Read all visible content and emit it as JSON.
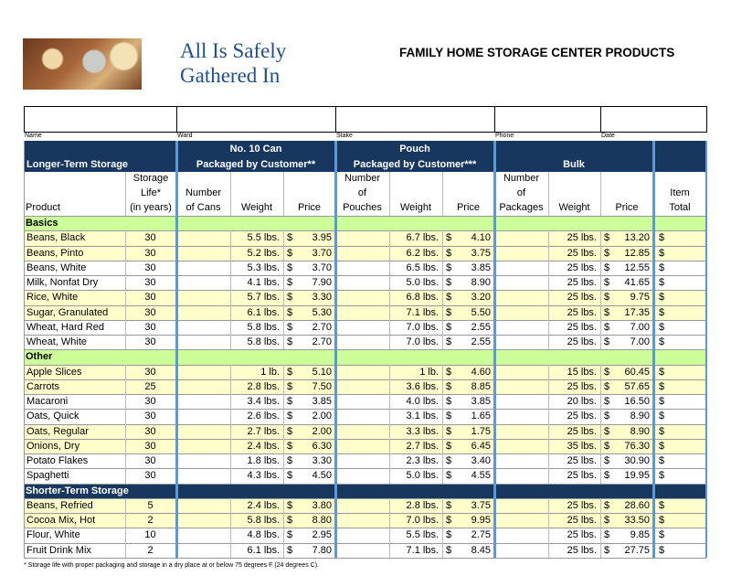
{
  "header": {
    "title": [
      "All Is Safely",
      "Gathered In"
    ],
    "heading": "FAMILY HOME STORAGE CENTER PRODUCTS"
  },
  "form": [
    "Name",
    "Ward",
    "Stake",
    "Phone",
    "Date"
  ],
  "table": {
    "section_label": "Longer-Term Storage",
    "groups": [
      [
        "No. 10 Can",
        "Packaged by Customer**"
      ],
      [
        "Pouch",
        "Packaged by Customer***"
      ],
      [
        "",
        "Bulk"
      ]
    ],
    "columns": [
      [
        "Product"
      ],
      [
        "Storage",
        "Life*",
        "(in years)"
      ],
      [
        "Number",
        "of Cans"
      ],
      [
        "Weight"
      ],
      [
        "Price"
      ],
      [
        "Number",
        "of",
        "Pouches"
      ],
      [
        "Weight"
      ],
      [
        "Price"
      ],
      [
        "Number",
        "of",
        "Packages"
      ],
      [
        "Weight"
      ],
      [
        "Price"
      ],
      [
        "Item",
        "Total"
      ]
    ],
    "currency": "$",
    "sections": [
      {
        "name": "Basics",
        "style": "light",
        "rows": [
          {
            "cells": [
              "Beans, Black",
              30,
              "5.5 lbs.",
              "3.95",
              "6.7 lbs.",
              "4.10",
              "25 lbs.",
              "13.20"
            ],
            "highlight": true
          },
          {
            "cells": [
              "Beans, Pinto",
              30,
              "5.2 lbs.",
              "3.70",
              "6.2 lbs.",
              "3.75",
              "25 lbs.",
              "12.85"
            ],
            "highlight": true
          },
          {
            "cells": [
              "Beans, White",
              30,
              "5.3 lbs.",
              "3.70",
              "6.5 lbs.",
              "3.85",
              "25 lbs.",
              "12.55"
            ],
            "highlight": false
          },
          {
            "cells": [
              "Milk, Nonfat Dry",
              30,
              "4.1 lbs.",
              "7.90",
              "5.0 lbs.",
              "8.90",
              "25 lbs.",
              "41.65"
            ],
            "highlight": false
          },
          {
            "cells": [
              "Rice, White",
              30,
              "5.7 lbs.",
              "3.30",
              "6.8 lbs.",
              "3.20",
              "25 lbs.",
              "9.75"
            ],
            "highlight": true
          },
          {
            "cells": [
              "Sugar, Granulated",
              30,
              "6.1 lbs.",
              "5.30",
              "7.1 lbs.",
              "5.50",
              "25 lbs.",
              "17.35"
            ],
            "highlight": true
          },
          {
            "cells": [
              "Wheat, Hard Red",
              30,
              "5.8 lbs.",
              "2.70",
              "7.0 lbs.",
              "2.55",
              "25 lbs.",
              "7.00"
            ],
            "highlight": false
          },
          {
            "cells": [
              "Wheat, White",
              30,
              "5.8 lbs.",
              "2.70",
              "7.0 lbs.",
              "2.55",
              "25 lbs.",
              "7.00"
            ],
            "highlight": false
          }
        ]
      },
      {
        "name": "Other",
        "style": "light",
        "rows": [
          {
            "cells": [
              "Apple Slices",
              30,
              "1 lb.",
              "5.10",
              "1 lb.",
              "4.60",
              "15 lbs.",
              "60.45"
            ],
            "highlight": true
          },
          {
            "cells": [
              "Carrots",
              25,
              "2.8 lbs.",
              "7.50",
              "3.6 lbs.",
              "8.85",
              "25 lbs.",
              "57.65"
            ],
            "highlight": true
          },
          {
            "cells": [
              "Macaroni",
              30,
              "3.4 lbs.",
              "3.85",
              "4.0 lbs.",
              "3.85",
              "20 lbs.",
              "16.50"
            ],
            "highlight": false
          },
          {
            "cells": [
              "Oats, Quick",
              30,
              "2.6 lbs.",
              "2.00",
              "3.1 lbs.",
              "1.65",
              "25 lbs.",
              "8.90"
            ],
            "highlight": false
          },
          {
            "cells": [
              "Oats, Regular",
              30,
              "2.7 lbs.",
              "2.00",
              "3.3 lbs.",
              "1.75",
              "25 lbs.",
              "8.90"
            ],
            "highlight": true
          },
          {
            "cells": [
              "Onions, Dry",
              30,
              "2.4 lbs.",
              "6.30",
              "2.7 lbs.",
              "6.45",
              "35 lbs.",
              "76.30"
            ],
            "highlight": true
          },
          {
            "cells": [
              "Potato Flakes",
              30,
              "1.8 lbs.",
              "3.30",
              "2.3 lbs.",
              "3.40",
              "25 lbs.",
              "30.90"
            ],
            "highlight": false
          },
          {
            "cells": [
              "Spaghetti",
              30,
              "4.3 lbs.",
              "4.50",
              "5.0 lbs.",
              "4.55",
              "25 lbs.",
              "19.95"
            ],
            "highlight": false
          }
        ]
      },
      {
        "name": "Shorter-Term Storage",
        "style": "dark",
        "rows": [
          {
            "cells": [
              "Beans, Refried",
              5,
              "2.4 lbs.",
              "3.80",
              "2.8 lbs.",
              "3.75",
              "25 lbs.",
              "28.60"
            ],
            "highlight": true
          },
          {
            "cells": [
              "Cocoa Mix, Hot",
              2,
              "5.8 lbs.",
              "8.80",
              "7.0 lbs.",
              "9.95",
              "25 lbs.",
              "33.50"
            ],
            "highlight": true
          },
          {
            "cells": [
              "Flour, White",
              10,
              "4.8 lbs.",
              "2.95",
              "5.5 lbs.",
              "2.75",
              "25 lbs.",
              "9.85"
            ],
            "highlight": false
          },
          {
            "cells": [
              "Fruit Drink Mix",
              2,
              "6.1 lbs.",
              "7.80",
              "7.1 lbs.",
              "8.45",
              "25 lbs.",
              "27.75"
            ],
            "highlight": false
          }
        ]
      }
    ]
  },
  "footnote": "* Storage life with proper packaging and storage in a dry place at or below 75 degrees F (24 degrees C)."
}
